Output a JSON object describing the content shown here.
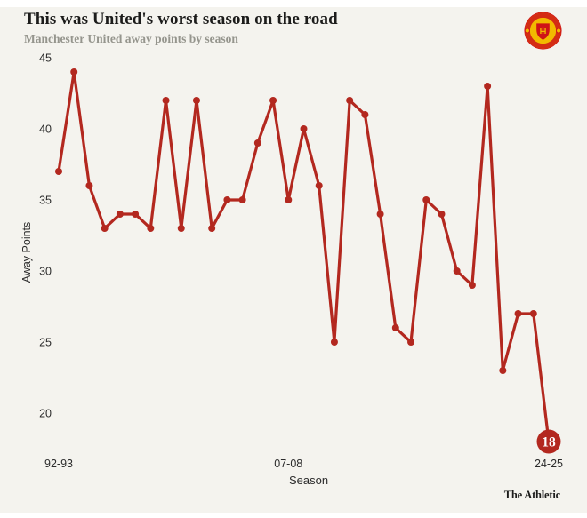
{
  "header": {
    "title": "This was United's worst season on the road",
    "subtitle": "Manchester United away points by season",
    "logo": "manchester-united-crest"
  },
  "footer": {
    "brand": "The Athletic"
  },
  "colors": {
    "background": "#ffffff",
    "panel": "#f4f3ee",
    "accent": "#b3281f",
    "title_text": "#1c1c1b",
    "subtitle_text": "#95958d",
    "tick_text": "#2b2b2b",
    "highlight_label_text": "#ffffff",
    "crest_gold": "#f2ba00",
    "crest_red": "#cf1317"
  },
  "chart_data": {
    "type": "line",
    "title": "This was United's worst season on the road",
    "subtitle": "Manchester United away points by season",
    "xlabel": "Season",
    "ylabel": "Away Points",
    "categories": [
      "92-93",
      "93-94",
      "94-95",
      "95-96",
      "96-97",
      "97-98",
      "98-99",
      "99-00",
      "00-01",
      "01-02",
      "02-03",
      "03-04",
      "04-05",
      "05-06",
      "06-07",
      "07-08",
      "08-09",
      "09-10",
      "10-11",
      "11-12",
      "12-13",
      "13-14",
      "14-15",
      "15-16",
      "16-17",
      "17-18",
      "18-19",
      "19-20",
      "20-21",
      "21-22",
      "22-23",
      "23-24",
      "24-25"
    ],
    "values": [
      37,
      44,
      36,
      33,
      34,
      34,
      33,
      42,
      33,
      42,
      33,
      35,
      35,
      39,
      42,
      35,
      40,
      36,
      25,
      42,
      41,
      34,
      26,
      25,
      35,
      34,
      30,
      29,
      43,
      23,
      27,
      27,
      18
    ],
    "yticks": [
      45,
      40,
      35,
      30,
      25,
      20
    ],
    "xticks_shown": [
      "92-93",
      "07-08",
      "24-25"
    ],
    "ylim": [
      18,
      45
    ],
    "grid": false,
    "legend": "none",
    "line_color": "#b3281f",
    "last_point_label": "18"
  }
}
